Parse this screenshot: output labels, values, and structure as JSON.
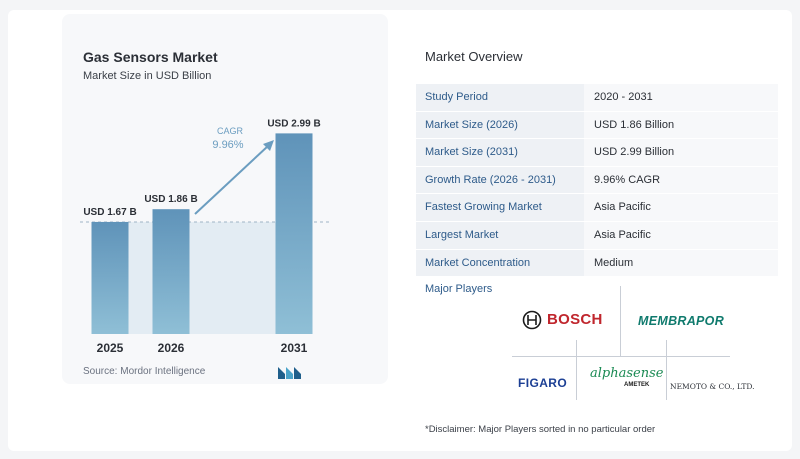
{
  "chart_data": {
    "type": "bar",
    "title": "Gas Sensors Market",
    "subtitle": "Market Size in USD Billion",
    "categories": [
      "2025",
      "2026",
      "2031"
    ],
    "values": [
      1.67,
      1.86,
      2.99
    ],
    "value_labels": [
      "USD 1.67 B",
      "USD 1.86 B",
      "USD 2.99 B"
    ],
    "ylim": [
      0,
      3.1
    ],
    "cagr_label": "CAGR",
    "cagr_value": "9.96%",
    "bar_color": "#6b9dc0",
    "grid": false
  },
  "source": "Source:  Mordor Intelligence",
  "overview": {
    "title": "Market Overview",
    "rows": [
      {
        "key": "Study Period",
        "value": "2020 - 2031"
      },
      {
        "key": "Market Size (2026)",
        "value": "USD 1.86 Billion"
      },
      {
        "key": "Market Size (2031)",
        "value": "USD 2.99 Billion"
      },
      {
        "key": "Growth Rate (2026 - 2031)",
        "value": "9.96% CAGR"
      },
      {
        "key": "Fastest Growing Market",
        "value": "Asia Pacific"
      },
      {
        "key": "Largest Market",
        "value": "Asia Pacific"
      },
      {
        "key": "Market Concentration",
        "value": "Medium"
      }
    ]
  },
  "players": {
    "title": "Major Players",
    "logos": [
      "BOSCH",
      "MEMBRAPOR",
      "FIGARO",
      "alphasense",
      "AMETEK",
      "NEMOTO & CO., LTD."
    ]
  },
  "disclaimer": "*Disclaimer: Major Players sorted in no particular order",
  "colors": {
    "accent": "#2e5b8a",
    "bar": "#6b9dc0",
    "arrow": "#6b9dc0"
  }
}
